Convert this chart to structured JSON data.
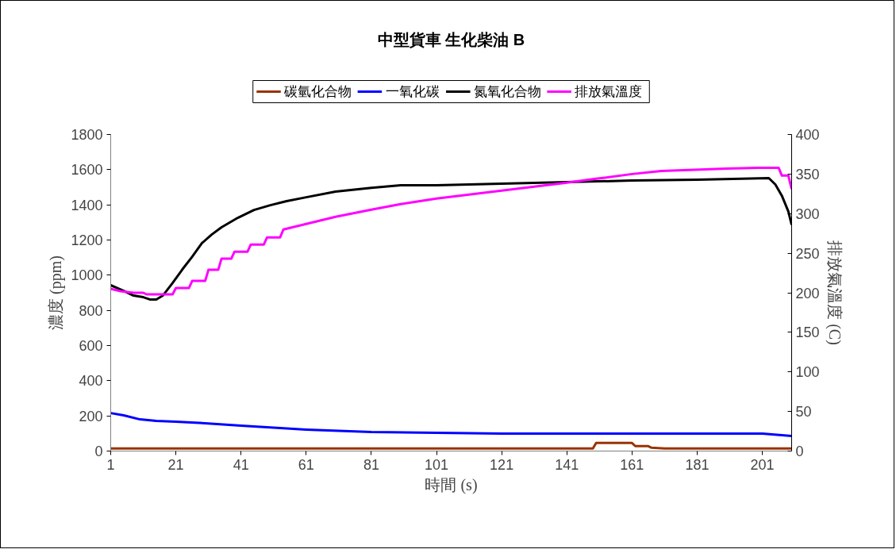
{
  "chart_data": {
    "type": "line",
    "title": "中型貨車 生化柴油 B",
    "xlabel": "時間 (s)",
    "ylabel": "濃度 (ppm)",
    "y2label": "排放氣溫度 (C)",
    "xlim": [
      1,
      210
    ],
    "xticks": [
      1,
      21,
      41,
      61,
      81,
      101,
      121,
      141,
      161,
      181,
      201
    ],
    "ylim": [
      0,
      1800
    ],
    "yticks": [
      0,
      200,
      400,
      600,
      800,
      1000,
      1200,
      1400,
      1600,
      1800
    ],
    "y2lim": [
      0,
      400
    ],
    "y2ticks": [
      0,
      50,
      100,
      150,
      200,
      250,
      300,
      350,
      400
    ],
    "legend": "top",
    "grid": false,
    "marker": "none",
    "line_style": "solid",
    "series": [
      {
        "name": "碳氫化合物",
        "color": "#993300",
        "x": [
          1,
          149,
          150,
          161,
          162,
          166,
          167,
          171,
          210
        ],
        "values": [
          15,
          15,
          46,
          46,
          28,
          28,
          19,
          15,
          15
        ]
      },
      {
        "name": "一氧化碳",
        "color": "#0000ff",
        "x": [
          1,
          5,
          10,
          15,
          21,
          30,
          41,
          61,
          81,
          101,
          121,
          141,
          161,
          201,
          210
        ],
        "values": [
          216,
          203,
          180,
          171,
          167,
          158,
          144,
          122,
          108,
          104,
          99,
          99,
          99,
          99,
          86
        ]
      },
      {
        "name": "氮氧化合物",
        "color": "#000000",
        "x": [
          1,
          5,
          8,
          11,
          13,
          15,
          17,
          20,
          23,
          26,
          29,
          32,
          35,
          40,
          45,
          50,
          55,
          61,
          70,
          81,
          90,
          101,
          121,
          141,
          161,
          181,
          203,
          205,
          207,
          209,
          210
        ],
        "values": [
          943,
          911,
          884,
          875,
          862,
          862,
          884,
          956,
          1033,
          1105,
          1182,
          1231,
          1272,
          1326,
          1371,
          1398,
          1421,
          1443,
          1475,
          1497,
          1511,
          1511,
          1520,
          1529,
          1538,
          1543,
          1552,
          1516,
          1452,
          1362,
          1286
        ]
      },
      {
        "name": "排放氣溫度",
        "color": "#ff00ff",
        "axis": "y2",
        "x": [
          1,
          4,
          8,
          11,
          12,
          20,
          21,
          25,
          26,
          30,
          31,
          34,
          35,
          38,
          39,
          43,
          44,
          48,
          49,
          53,
          54,
          61,
          70,
          81,
          90,
          101,
          121,
          141,
          150,
          161,
          170,
          190,
          200,
          206,
          207,
          209,
          210
        ],
        "values": [
          205,
          202,
          200,
          200,
          198,
          198,
          206,
          206,
          215,
          215,
          229,
          229,
          243,
          243,
          252,
          252,
          261,
          261,
          270,
          270,
          280,
          287,
          296,
          305,
          312,
          319,
          329,
          339,
          344,
          350,
          354,
          357,
          358,
          358,
          348,
          348,
          331
        ]
      }
    ]
  }
}
